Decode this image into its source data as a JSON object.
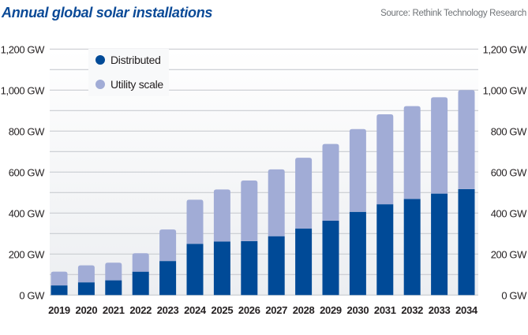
{
  "header": {
    "title": "Annual global solar installations",
    "source": "Source: Rethink Technology Research"
  },
  "colors": {
    "distributed": "#004a97",
    "utility_scale": "#a1acd6",
    "title": "#0b4a97",
    "grid": "#c9ccd1",
    "plot_bg_top": "#ffffff",
    "plot_bg_bottom": "#eceef1"
  },
  "chart_data": {
    "type": "bar",
    "stacked": true,
    "title": "Annual global solar installations",
    "source": "Source: Rethink Technology Research",
    "xlabel": "",
    "ylabel": "",
    "unit": "GW",
    "ylim": [
      0,
      1200
    ],
    "y_ticks": [
      0,
      200,
      400,
      600,
      800,
      1000,
      1200
    ],
    "y_tick_labels": [
      "0 GW",
      "200 GW",
      "400 GW",
      "600 GW",
      "800 GW",
      "1,000 GW",
      "1,200 GW"
    ],
    "grid_step": 100,
    "grid": true,
    "legend_position": "top-left",
    "categories": [
      "2019",
      "2020",
      "2021",
      "2022",
      "2023",
      "2024",
      "2025",
      "2026",
      "2027",
      "2028",
      "2029",
      "2030",
      "2031",
      "2032",
      "2033",
      "2034"
    ],
    "series": [
      {
        "name": "Distributed",
        "values": [
          47,
          62,
          72,
          114,
          166,
          250,
          261,
          263,
          287,
          324,
          363,
          406,
          443,
          469,
          495,
          517
        ]
      },
      {
        "name": "Utility scale",
        "values": [
          67,
          83,
          86,
          90,
          154,
          215,
          254,
          296,
          326,
          346,
          374,
          404,
          439,
          453,
          470,
          483
        ]
      }
    ],
    "totals": [
      114,
      145,
      158,
      204,
      320,
      465,
      515,
      559,
      613,
      670,
      737,
      810,
      882,
      922,
      965,
      1000
    ]
  }
}
